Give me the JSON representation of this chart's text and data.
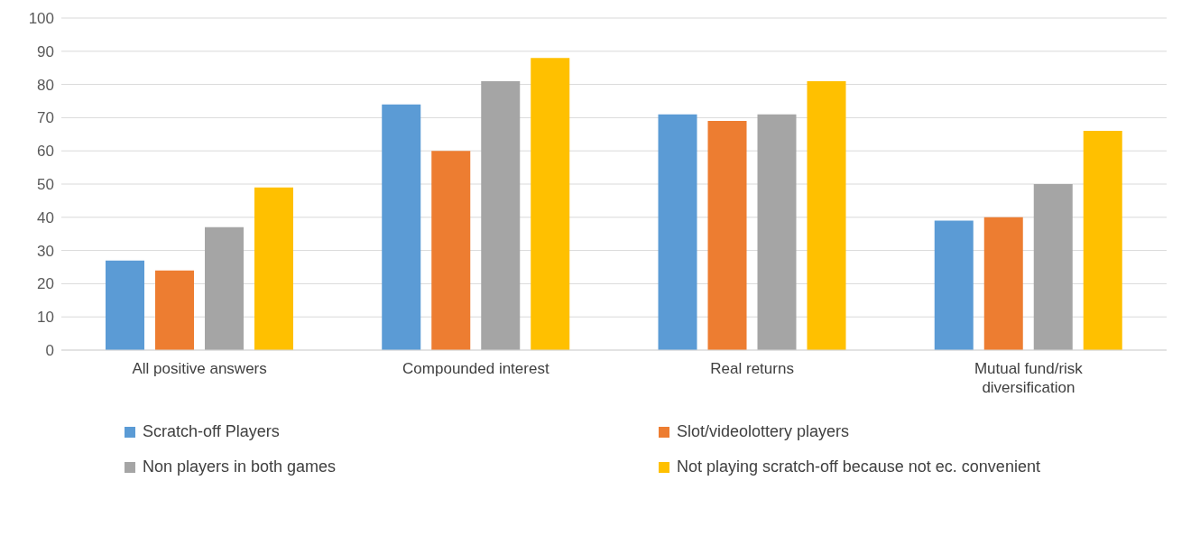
{
  "chart_data": {
    "type": "bar",
    "categories": [
      "All positive answers",
      "Compounded interest",
      "Real returns",
      "Mutual fund/risk diversification"
    ],
    "series": [
      {
        "name": "Scratch-off Players",
        "color": "#5b9bd5",
        "values": [
          27,
          74,
          71,
          39
        ]
      },
      {
        "name": "Slot/videolottery players",
        "color": "#ed7d31",
        "values": [
          24,
          60,
          69,
          40
        ]
      },
      {
        "name": "Non players in both games",
        "color": "#a5a5a5",
        "values": [
          37,
          81,
          71,
          50
        ]
      },
      {
        "name": "Not playing scratch-off because not ec. convenient",
        "color": "#ffc000",
        "values": [
          49,
          88,
          81,
          66
        ]
      }
    ],
    "ylim": [
      0,
      100
    ],
    "yticks": [
      0,
      10,
      20,
      30,
      40,
      50,
      60,
      70,
      80,
      90,
      100
    ],
    "grid": "y",
    "legend": "bottom"
  }
}
